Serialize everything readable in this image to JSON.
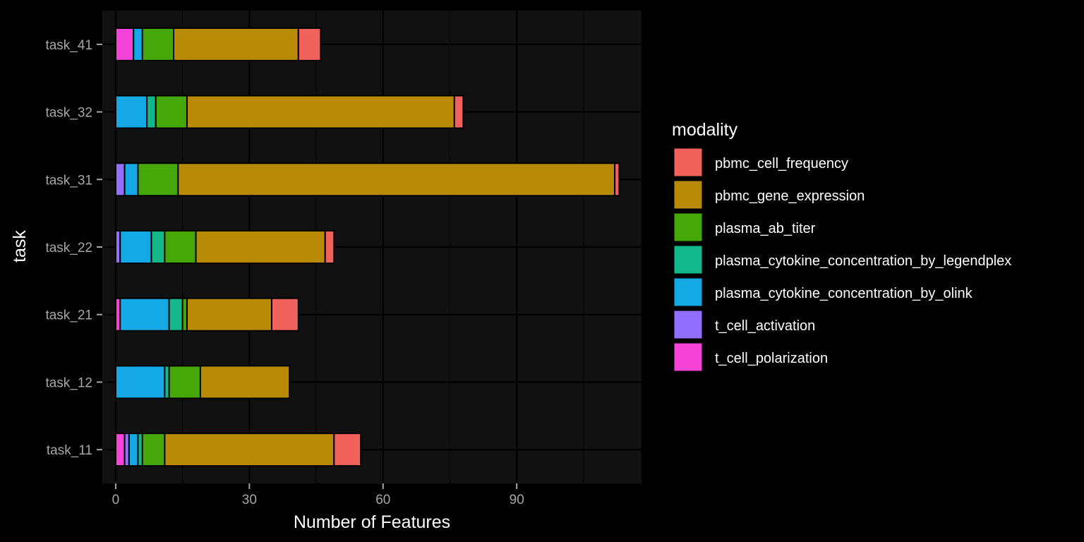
{
  "chart_data": {
    "type": "bar",
    "orientation": "horizontal",
    "stacked": true,
    "xlabel": "Number of Features",
    "ylabel": "task",
    "xlim": [
      -3,
      118
    ],
    "x_ticks": [
      0,
      30,
      60,
      90
    ],
    "grid": true,
    "legend_position": "right",
    "legend_title": "modality",
    "categories": [
      "task_11",
      "task_12",
      "task_21",
      "task_22",
      "task_31",
      "task_32",
      "task_41"
    ],
    "series": [
      {
        "name": "t_cell_polarization",
        "color": "#F542D7",
        "values": [
          2,
          0,
          1,
          0,
          0,
          0,
          4
        ]
      },
      {
        "name": "t_cell_activation",
        "color": "#9270FF",
        "values": [
          1,
          0,
          0,
          1,
          2,
          0,
          0
        ]
      },
      {
        "name": "plasma_cytokine_concentration_by_olink",
        "color": "#14A9E5",
        "values": [
          2,
          11,
          11,
          7,
          3,
          7,
          2
        ]
      },
      {
        "name": "plasma_cytokine_concentration_by_legendplex",
        "color": "#13B88A",
        "values": [
          1,
          1,
          3,
          3,
          0,
          2,
          0
        ]
      },
      {
        "name": "plasma_ab_titer",
        "color": "#45A808",
        "values": [
          5,
          7,
          1,
          7,
          9,
          7,
          7
        ]
      },
      {
        "name": "pbmc_gene_expression",
        "color": "#B88A06",
        "values": [
          38,
          20,
          19,
          29,
          98,
          60,
          28
        ]
      },
      {
        "name": "pbmc_cell_frequency",
        "color": "#F2625C",
        "values": [
          6,
          0,
          6,
          2,
          1,
          2,
          5
        ]
      }
    ],
    "legend_order": [
      "pbmc_cell_frequency",
      "pbmc_gene_expression",
      "plasma_ab_titer",
      "plasma_cytokine_concentration_by_legendplex",
      "plasma_cytokine_concentration_by_olink",
      "t_cell_activation",
      "t_cell_polarization"
    ]
  }
}
